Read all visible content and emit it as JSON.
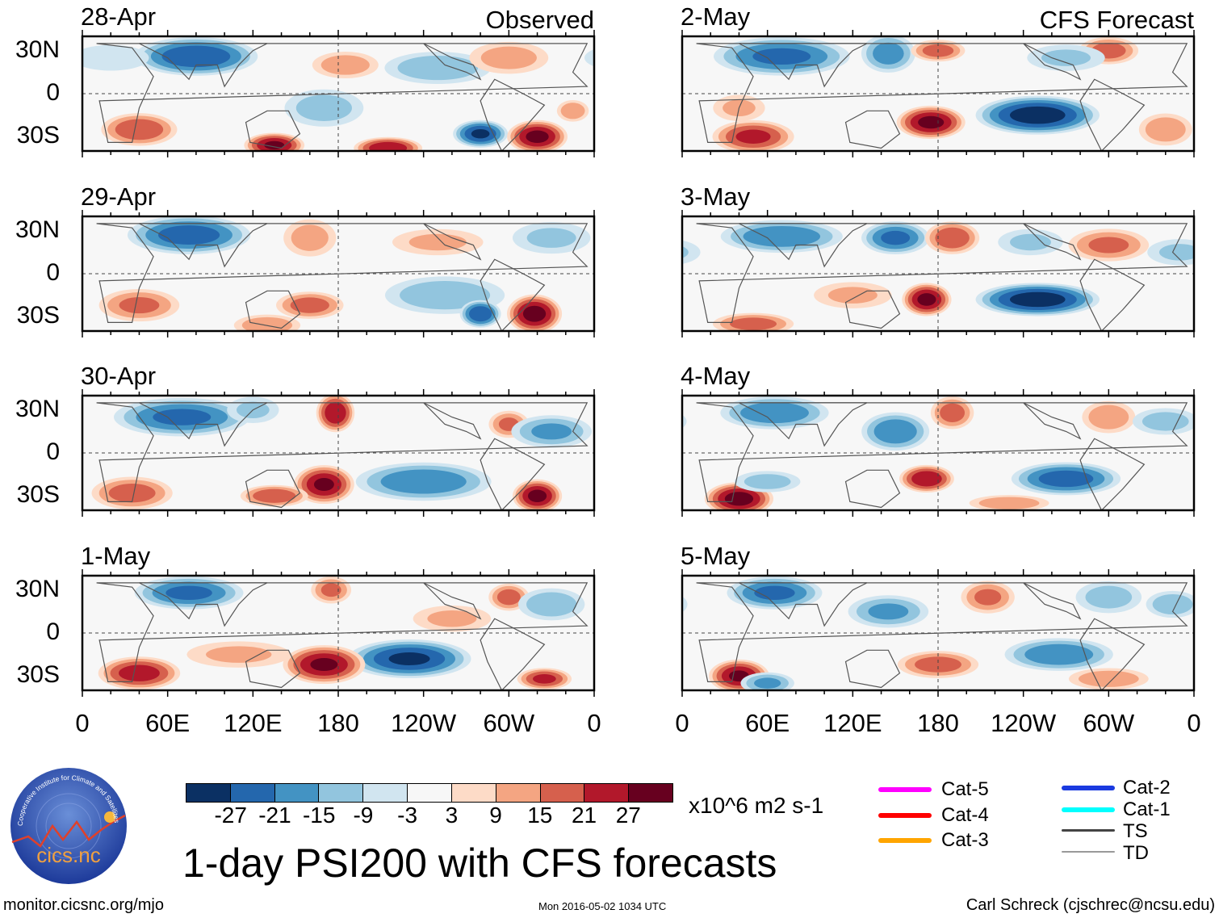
{
  "figure": {
    "title": "1-day PSI200 with CFS forecasts",
    "left_column_label": "Observed",
    "right_column_label": "CFS Forecast",
    "units": "x10^6 m2 s-1",
    "url": "monitor.cicsnc.org/mjo",
    "timestamp": "Mon 2016-05-02 1034 UTC",
    "credit": "Carl Schreck (cjschrec@ncsu.edu)"
  },
  "logo": {
    "name": "cics.nc",
    "ring_text": "Cooperative Institute for Climate and Satellites"
  },
  "panels": [
    {
      "date": "28-Apr",
      "column": "observed"
    },
    {
      "date": "29-Apr",
      "column": "observed"
    },
    {
      "date": "30-Apr",
      "column": "observed"
    },
    {
      "date": "1-May",
      "column": "observed"
    },
    {
      "date": "2-May",
      "column": "forecast"
    },
    {
      "date": "3-May",
      "column": "forecast"
    },
    {
      "date": "4-May",
      "column": "forecast"
    },
    {
      "date": "5-May",
      "column": "forecast"
    }
  ],
  "y_axis": [
    "30N",
    "0",
    "30S"
  ],
  "x_axis": [
    "0",
    "60E",
    "120E",
    "180",
    "120W",
    "60W",
    "0"
  ],
  "colorbar": {
    "labels": [
      "-27",
      "-21",
      "-15",
      "-9",
      "-3",
      "3",
      "9",
      "15",
      "21",
      "27"
    ],
    "colors": [
      "#0b3063",
      "#2467ad",
      "#4393c3",
      "#92c5de",
      "#d1e5f0",
      "#f7f7f7",
      "#fddbc7",
      "#f4a582",
      "#d6604d",
      "#b2182b",
      "#67001f"
    ]
  },
  "storm_legend": [
    {
      "label": "Cat-5",
      "color": "#ff00ff"
    },
    {
      "label": "Cat-4",
      "color": "#ff0000"
    },
    {
      "label": "Cat-3",
      "color": "#ffa500"
    },
    {
      "label": "Cat-2",
      "color": "#1a3ae0"
    },
    {
      "label": "Cat-1",
      "color": "#00ffff"
    },
    {
      "label": "TS",
      "color": "#444444"
    },
    {
      "label": "TD",
      "color": "#999999"
    }
  ]
}
